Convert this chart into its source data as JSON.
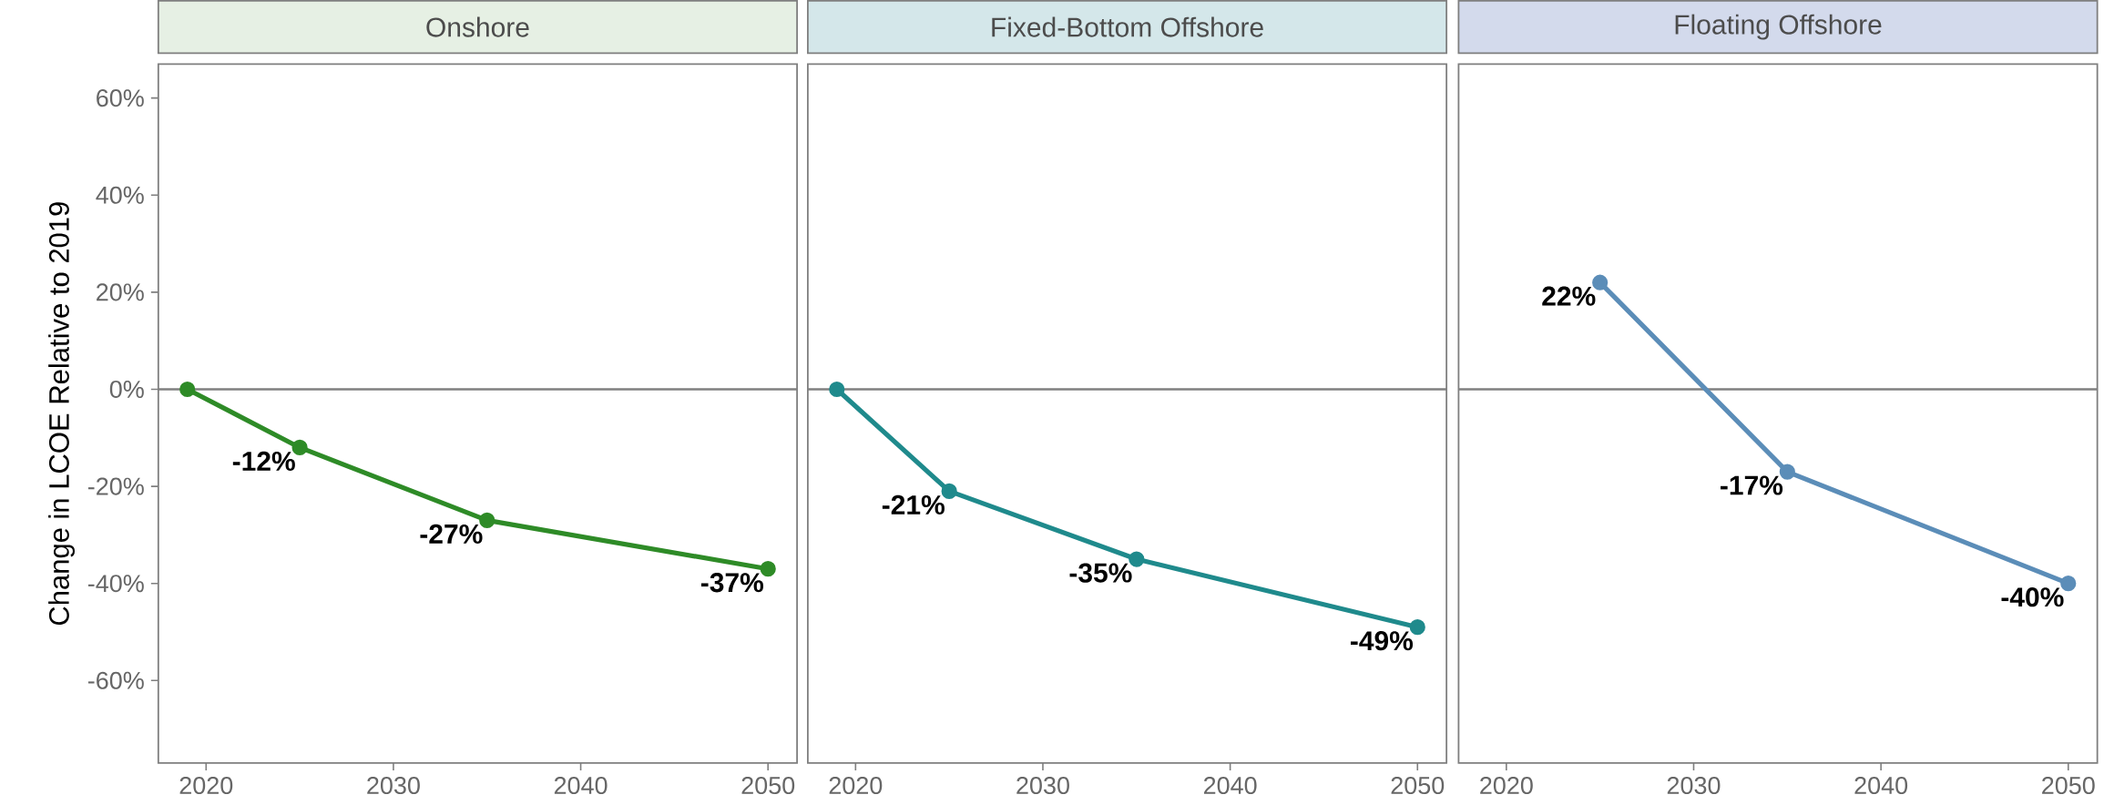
{
  "chart_data": [
    {
      "type": "line",
      "title": "Onshore",
      "ylabel": "Change in LCOE Relative to 2019",
      "x": [
        2019,
        2025,
        2035,
        2050
      ],
      "values": [
        0,
        -12,
        -27,
        -37
      ],
      "value_labels": [
        null,
        "-12%",
        "-27%",
        "-37%"
      ],
      "color": "#2e8b27",
      "marker": "circle",
      "xlim": [
        2017.45,
        2051.55
      ],
      "ylim": [
        -77,
        67
      ],
      "xticks": [
        2020,
        2030,
        2040,
        2050
      ],
      "yticks": [
        {
          "value": -60,
          "label": "-60%"
        },
        {
          "value": -40,
          "label": "-40%"
        },
        {
          "value": -20,
          "label": "-20%"
        },
        {
          "value": 0,
          "label": "0%"
        },
        {
          "value": 20,
          "label": "20%"
        },
        {
          "value": 40,
          "label": "40%"
        },
        {
          "value": 60,
          "label": "60%"
        }
      ],
      "ref_lines": [
        {
          "axis": "y",
          "value": 0,
          "color": "#808080"
        }
      ]
    },
    {
      "type": "line",
      "title": "Fixed-Bottom Offshore",
      "x": [
        2019,
        2025,
        2035,
        2050
      ],
      "values": [
        0,
        -21,
        -35,
        -49
      ],
      "value_labels": [
        null,
        "-21%",
        "-35%",
        "-49%"
      ],
      "color": "#1f8a8c",
      "marker": "circle",
      "xlim": [
        2017.45,
        2051.55
      ],
      "ylim": [
        -77,
        67
      ],
      "xticks": [
        2020,
        2030,
        2040,
        2050
      ],
      "tick_labels": "x",
      "ref_lines": [
        {
          "axis": "y",
          "value": 0,
          "color": "#808080"
        }
      ]
    },
    {
      "type": "line",
      "title": "Floating Offshore",
      "x": [
        2025,
        2035,
        2050
      ],
      "values": [
        22,
        -17,
        -40
      ],
      "value_labels": [
        "22%",
        "-17%",
        "-40%"
      ],
      "color": "#5b8db8",
      "marker": "circle",
      "xlim": [
        2017.45,
        2051.55
      ],
      "ylim": [
        -77,
        67
      ],
      "xticks": [
        2020,
        2030,
        2040,
        2050
      ],
      "tick_labels": "x",
      "ref_lines": [
        {
          "axis": "y",
          "value": 0,
          "color": "#808080"
        }
      ]
    }
  ]
}
